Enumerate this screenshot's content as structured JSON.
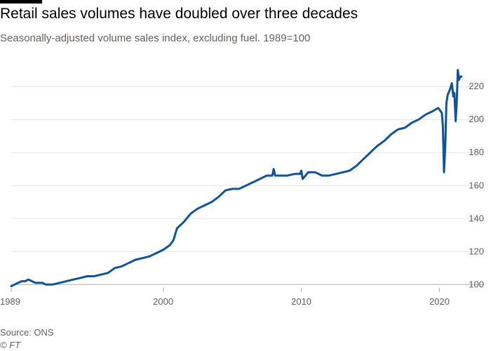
{
  "header": {
    "title": "Retail sales volumes have doubled over three decades",
    "subtitle": "Seasonally-adjusted volume sales index, excluding fuel. 1989=100"
  },
  "footer": {
    "source": "Source: ONS",
    "credit": "© FT"
  },
  "colors": {
    "line": "#0f5499",
    "grid": "#e6e3e0",
    "baseline": "#b3ada8",
    "brand_bar": "#000000"
  },
  "chart_data": {
    "type": "line",
    "title": "Retail sales volumes have doubled over three decades",
    "subtitle": "Seasonally-adjusted volume sales index, excluding fuel. 1989=100",
    "xlabel": "",
    "ylabel": "",
    "xlim": [
      1989,
      2021.7
    ],
    "ylim": [
      98,
      232
    ],
    "x_ticks": [
      1989,
      2000,
      2010,
      2020
    ],
    "y_ticks": [
      100,
      120,
      140,
      160,
      180,
      200,
      220
    ],
    "grid": true,
    "y_axis_side": "right",
    "legend": "none",
    "series": [
      {
        "x": [
          1989.0,
          1989.25,
          1989.5,
          1989.75,
          1990.0,
          1990.25,
          1990.5,
          1990.75,
          1991.0,
          1991.25,
          1991.5,
          1991.75,
          1992.0,
          1992.5,
          1993.0,
          1993.5,
          1994.0,
          1994.5,
          1995.0,
          1995.5,
          1996.0,
          1996.5,
          1997.0,
          1997.5,
          1998.0,
          1998.5,
          1999.0,
          1999.5,
          2000.0,
          2000.5,
          2000.75,
          2001.0,
          2001.5,
          2002.0,
          2002.5,
          2003.0,
          2003.5,
          2004.0,
          2004.5,
          2005.0,
          2005.5,
          2006.0,
          2006.5,
          2007.0,
          2007.5,
          2007.9,
          2008.0,
          2008.1,
          2008.5,
          2009.0,
          2009.5,
          2009.9,
          2010.0,
          2010.1,
          2010.5,
          2011.0,
          2011.5,
          2012.0,
          2012.5,
          2013.0,
          2013.5,
          2014.0,
          2014.5,
          2015.0,
          2015.5,
          2016.0,
          2016.5,
          2017.0,
          2017.5,
          2018.0,
          2018.5,
          2019.0,
          2019.5,
          2019.9,
          2020.0,
          2020.17,
          2020.25,
          2020.33,
          2020.42,
          2020.5,
          2020.6,
          2020.75,
          2020.9,
          2021.0,
          2021.08,
          2021.17,
          2021.25,
          2021.33,
          2021.42,
          2021.5,
          2021.6
        ],
        "values": [
          99,
          100,
          101,
          102,
          102,
          103,
          102,
          101,
          101,
          101,
          100,
          100,
          100,
          101,
          102,
          103,
          104,
          105,
          105,
          106,
          107,
          110,
          111,
          113,
          115,
          116,
          117,
          119,
          121,
          124,
          127,
          134,
          138,
          143,
          146,
          148,
          150,
          153,
          157,
          158,
          158,
          160,
          162,
          164,
          166,
          166,
          170,
          166,
          166,
          166,
          167,
          167,
          169,
          164,
          168,
          168,
          166,
          166,
          167,
          168,
          169,
          172,
          176,
          180,
          184,
          187,
          191,
          194,
          195,
          198,
          200,
          203,
          205,
          207,
          206,
          204,
          196,
          168,
          184,
          210,
          215,
          218,
          222,
          214,
          216,
          199,
          210,
          230,
          224,
          226,
          226
        ]
      }
    ]
  }
}
